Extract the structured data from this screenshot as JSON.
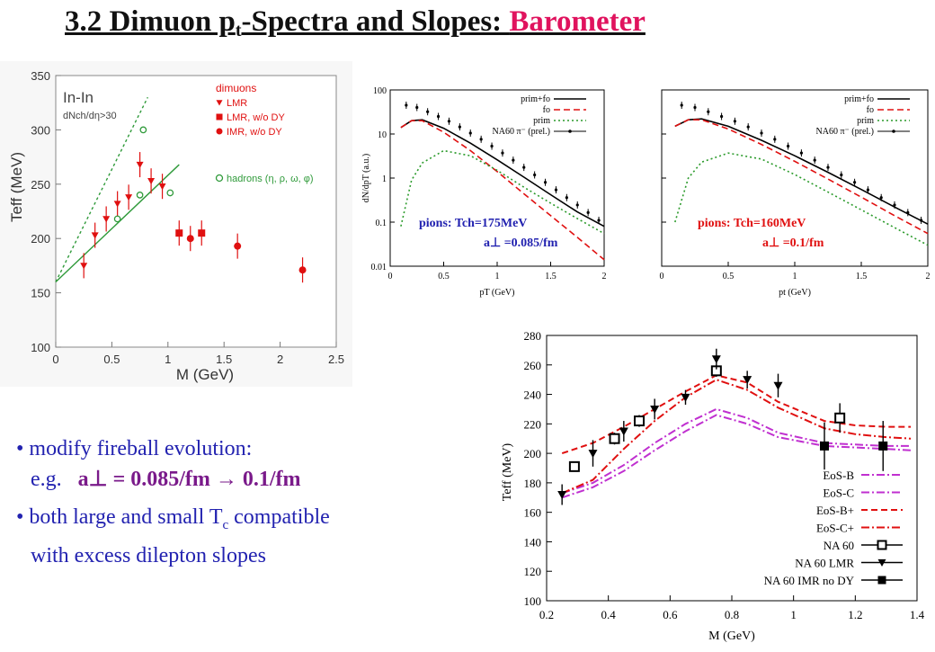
{
  "slide": {
    "title_main": "3.2  Dimuon p",
    "title_sub": "t",
    "title_rest": "-Spectra and Slopes: ",
    "title_link": "Barometer"
  },
  "bullets": {
    "b1_dot": "•",
    "b1_text": "modify fireball evolution:",
    "b1_eg": "e.g.",
    "b1_formula": "a⊥ = 0.085/fm → 0.1/fm",
    "b2_dot": "•",
    "b2_text_a": "both large and small T",
    "b2_sub": "c",
    "b2_text_b": " compatible",
    "b2_text_c": "with excess dilepton slopes"
  },
  "chart_data": [
    {
      "type": "scatter",
      "title": "In-In",
      "subtitle": "dNch/dη>30",
      "xlabel": "M (GeV)",
      "ylabel": "Teff (MeV)",
      "xlim": [
        0,
        2.5
      ],
      "ylim": [
        100,
        350
      ],
      "xticks": [
        "0",
        "0.5",
        "1",
        "1.5",
        "2",
        "2.5"
      ],
      "yticks": [
        "100",
        "150",
        "200",
        "250",
        "300",
        "350"
      ],
      "legend_header": "dimuons",
      "series": [
        {
          "name": "LMR",
          "marker": "triangle-down",
          "color": "#e01010",
          "x": [
            0.25,
            0.35,
            0.45,
            0.55,
            0.65,
            0.75,
            0.85,
            0.95
          ],
          "y": [
            175,
            203,
            218,
            232,
            238,
            268,
            253,
            248
          ]
        },
        {
          "name": "LMR, w/o DY",
          "marker": "square",
          "color": "#e01010",
          "x": [
            1.1,
            1.3
          ],
          "y": [
            205,
            205
          ]
        },
        {
          "name": "IMR, w/o DY",
          "marker": "circle",
          "color": "#e01010",
          "x": [
            1.2,
            1.62,
            2.2
          ],
          "y": [
            200,
            193,
            171
          ]
        },
        {
          "name": "hadrons (η, ρ, ω, φ)",
          "marker": "circle-open",
          "color": "#2f9a3a",
          "x": [
            0.55,
            0.75,
            0.78,
            1.02
          ],
          "y": [
            218,
            240,
            300,
            242
          ]
        }
      ],
      "fit_lines": [
        {
          "style": "solid",
          "color": "#2f9a3a",
          "x": [
            0,
            1.1
          ],
          "y": [
            160,
            268
          ]
        },
        {
          "style": "dotted",
          "color": "#2f9a3a",
          "x": [
            0,
            0.82
          ],
          "y": [
            160,
            330
          ]
        }
      ]
    },
    {
      "type": "line",
      "xlabel": "pT (GeV)",
      "ylabel": "dN/dpT (a.u.)",
      "yscale": "log",
      "xlim": [
        0,
        2
      ],
      "ylim": [
        0.01,
        100
      ],
      "xticks": [
        "0",
        "0.5",
        "1",
        "1.5",
        "2"
      ],
      "yticks": [
        "0.01",
        "0.1",
        "1",
        "10",
        "100"
      ],
      "annotation_line1": "pions: Tch=175MeV",
      "annotation_line2": "a⊥ =0.085/fm",
      "legend": [
        "prim+fo",
        "fo",
        "prim",
        "NA60 π⁻ (prel.)"
      ],
      "series": [
        {
          "name": "prim+fo",
          "style": "solid",
          "color": "#000000",
          "x": [
            0.1,
            0.2,
            0.3,
            0.5,
            0.75,
            1,
            1.25,
            1.5,
            1.75,
            2
          ],
          "y": [
            14,
            20,
            21,
            13.5,
            6.2,
            2.6,
            1.05,
            0.42,
            0.17,
            0.08
          ]
        },
        {
          "name": "fo",
          "style": "dashed",
          "color": "#e01010",
          "x": [
            0.1,
            0.2,
            0.3,
            0.5,
            0.75,
            1,
            1.25,
            1.5,
            1.75,
            2
          ],
          "y": [
            14,
            20,
            20,
            11,
            4.2,
            1.4,
            0.44,
            0.14,
            0.045,
            0.014
          ]
        },
        {
          "name": "prim",
          "style": "dotted",
          "color": "#2a9a2a",
          "x": [
            0.1,
            0.2,
            0.3,
            0.5,
            0.75,
            1,
            1.25,
            1.5,
            1.75,
            2
          ],
          "y": [
            0.08,
            0.9,
            2.2,
            4.2,
            3.2,
            1.5,
            0.62,
            0.27,
            0.12,
            0.055
          ]
        },
        {
          "name": "NA60 π⁻ (prel.)",
          "style": "points",
          "color": "#000000",
          "x": [
            0.15,
            0.25,
            0.35,
            0.45,
            0.55,
            0.65,
            0.75,
            0.85,
            0.95,
            1.05,
            1.15,
            1.25,
            1.35,
            1.45,
            1.55,
            1.65,
            1.75,
            1.85,
            1.95
          ],
          "y": [
            45,
            40,
            32,
            25,
            19.5,
            14.5,
            10.5,
            7.6,
            5.3,
            3.7,
            2.55,
            1.75,
            1.18,
            0.8,
            0.54,
            0.36,
            0.245,
            0.165,
            0.11
          ]
        }
      ]
    },
    {
      "type": "line",
      "xlabel": "pt (GeV)",
      "yscale": "log",
      "xlim": [
        0,
        2
      ],
      "ylim": [
        0.01,
        100
      ],
      "xticks": [
        "0",
        "0.5",
        "1",
        "1.5",
        "2"
      ],
      "annotation_line1": "pions: Tch=160MeV",
      "annotation_line2": "a⊥ =0.1/fm",
      "legend": [
        "prim+fo",
        "fo",
        "prim",
        "NA60 π⁻ (prel.)"
      ],
      "series": [
        {
          "name": "prim+fo",
          "style": "solid",
          "color": "#000000",
          "x": [
            0.1,
            0.2,
            0.3,
            0.5,
            0.75,
            1,
            1.25,
            1.5,
            1.75,
            2
          ],
          "y": [
            15,
            21,
            22,
            15,
            7.2,
            3.2,
            1.35,
            0.55,
            0.22,
            0.09
          ]
        },
        {
          "name": "fo",
          "style": "dashed",
          "color": "#e01010",
          "x": [
            0.1,
            0.2,
            0.3,
            0.5,
            0.75,
            1,
            1.25,
            1.5,
            1.75,
            2
          ],
          "y": [
            15,
            21,
            21,
            13,
            5.8,
            2.4,
            0.95,
            0.37,
            0.14,
            0.055
          ]
        },
        {
          "name": "prim",
          "style": "dotted",
          "color": "#2a9a2a",
          "x": [
            0.1,
            0.2,
            0.3,
            0.5,
            0.75,
            1,
            1.25,
            1.5,
            1.75,
            2
          ],
          "y": [
            0.1,
            1.0,
            2.3,
            3.7,
            2.7,
            1.2,
            0.48,
            0.19,
            0.075,
            0.03
          ]
        },
        {
          "name": "NA60 π⁻ (prel.)",
          "style": "points",
          "color": "#000000",
          "x": [
            0.15,
            0.25,
            0.35,
            0.45,
            0.55,
            0.65,
            0.75,
            0.85,
            0.95,
            1.05,
            1.15,
            1.25,
            1.35,
            1.45,
            1.55,
            1.65,
            1.75,
            1.85,
            1.95
          ],
          "y": [
            45,
            40,
            32,
            25,
            19.5,
            14.5,
            10.5,
            7.6,
            5.3,
            3.7,
            2.55,
            1.75,
            1.18,
            0.8,
            0.54,
            0.36,
            0.245,
            0.165,
            0.11
          ]
        }
      ]
    },
    {
      "type": "line",
      "xlabel": "M (GeV)",
      "ylabel": "Teff (MeV)",
      "xlim": [
        0.2,
        1.4
      ],
      "ylim": [
        100,
        280
      ],
      "xticks": [
        "0.2",
        "0.4",
        "0.6",
        "0.8",
        "1",
        "1.2",
        "1.4"
      ],
      "yticks": [
        "100",
        "120",
        "140",
        "160",
        "180",
        "200",
        "220",
        "240",
        "260",
        "280"
      ],
      "series": [
        {
          "name": "EoS-B",
          "style": "dashdot",
          "color": "#c030d0",
          "x": [
            0.25,
            0.35,
            0.45,
            0.55,
            0.65,
            0.75,
            0.85,
            0.95,
            1.1,
            1.2,
            1.3,
            1.38
          ],
          "y": [
            173,
            180,
            192,
            207,
            220,
            230,
            224,
            214,
            207,
            206,
            205,
            205
          ]
        },
        {
          "name": "EoS-C",
          "style": "dashdot",
          "color": "#c030d0",
          "x": [
            0.25,
            0.35,
            0.45,
            0.55,
            0.65,
            0.75,
            0.85,
            0.95,
            1.1,
            1.2,
            1.3,
            1.38
          ],
          "y": [
            170,
            177,
            188,
            202,
            215,
            226,
            220,
            211,
            205,
            204,
            203,
            202
          ]
        },
        {
          "name": "EoS-B+",
          "style": "dashed",
          "color": "#e01010",
          "x": [
            0.25,
            0.35,
            0.45,
            0.55,
            0.65,
            0.75,
            0.85,
            0.95,
            1.1,
            1.2,
            1.3,
            1.38
          ],
          "y": [
            200,
            207,
            218,
            230,
            242,
            253,
            248,
            235,
            222,
            219,
            218,
            218
          ]
        },
        {
          "name": "EoS-C+",
          "style": "dashdot",
          "color": "#e01010",
          "x": [
            0.25,
            0.35,
            0.45,
            0.55,
            0.65,
            0.75,
            0.85,
            0.95,
            1.1,
            1.2,
            1.3,
            1.38
          ],
          "y": [
            173,
            182,
            203,
            222,
            238,
            250,
            243,
            231,
            217,
            213,
            211,
            210
          ]
        },
        {
          "name": "NA 60",
          "marker": "square-open",
          "color": "#000000",
          "x": [
            0.29,
            0.42,
            0.5,
            0.75,
            1.15
          ],
          "y": [
            191,
            210,
            222,
            256,
            224
          ],
          "err": [
            3,
            4,
            4,
            4,
            10
          ]
        },
        {
          "name": "NA 60 LMR",
          "marker": "triangle-down",
          "color": "#000000",
          "x": [
            0.25,
            0.35,
            0.45,
            0.55,
            0.65,
            0.75,
            0.85,
            0.95
          ],
          "y": [
            172,
            200,
            215,
            230,
            238,
            264,
            250,
            246
          ],
          "err": [
            7,
            9,
            7,
            7,
            5,
            7,
            6,
            8
          ]
        },
        {
          "name": "NA 60 IMR no DY",
          "marker": "square",
          "color": "#000000",
          "x": [
            1.1,
            1.29
          ],
          "y": [
            205,
            205
          ],
          "err": [
            16,
            17
          ]
        }
      ]
    }
  ]
}
